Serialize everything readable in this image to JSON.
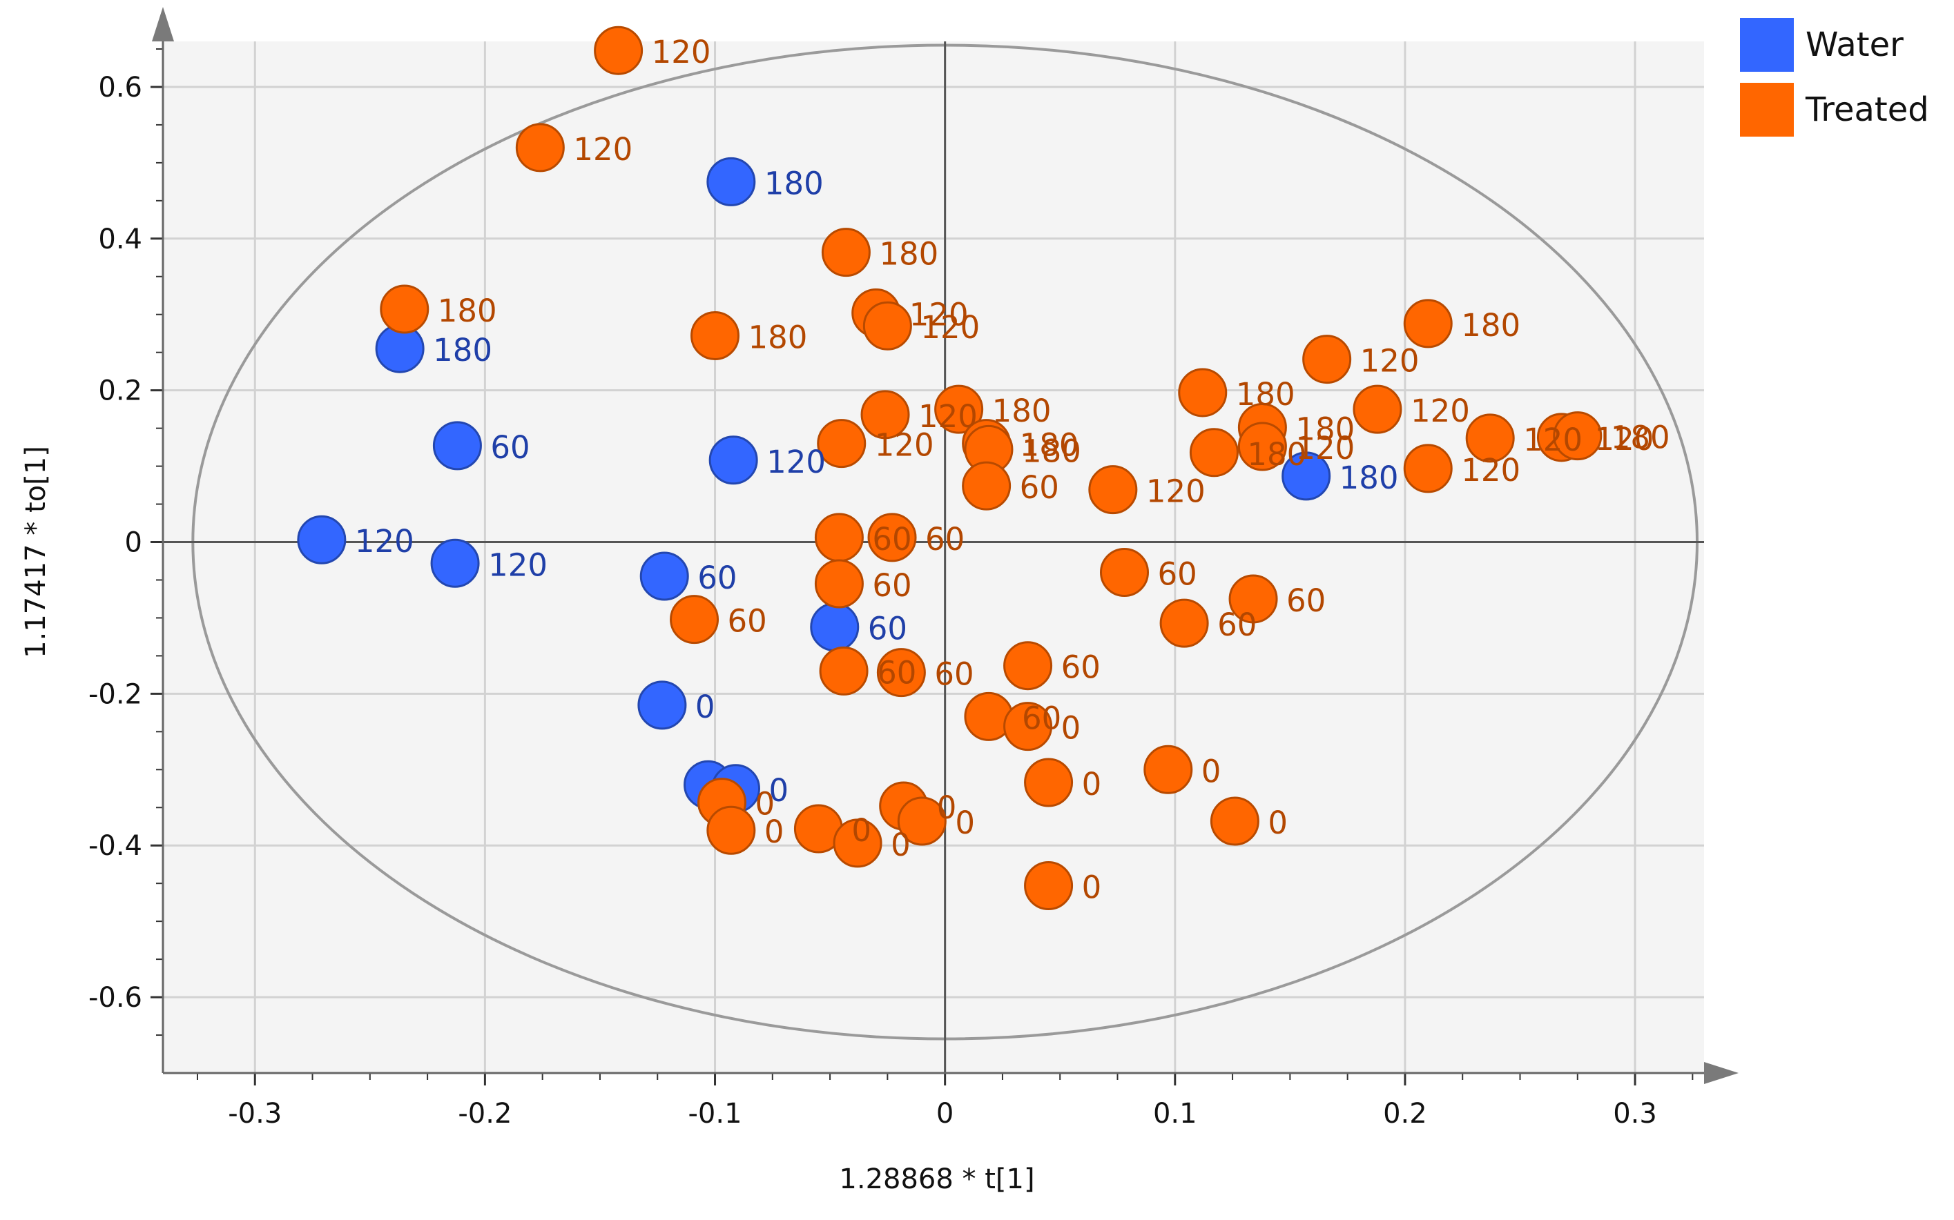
{
  "chart_data": {
    "type": "scatter",
    "xlabel": "1.28868 * t[1]",
    "ylabel": "1.17417 * to[1]",
    "xlim": [
      -0.34,
      0.33
    ],
    "ylim": [
      -0.7,
      0.66
    ],
    "xticks": [
      -0.3,
      -0.2,
      -0.1,
      0,
      0.1,
      0.2,
      0.3
    ],
    "xtick_labels": [
      "-0.3",
      "-0.2",
      "-0.1",
      "0",
      "0.1",
      "0.2",
      "0.3"
    ],
    "yticks": [
      -0.6,
      -0.4,
      -0.2,
      0,
      0.2,
      0.4,
      0.6
    ],
    "ytick_labels": [
      "-0.6",
      "-0.4",
      "-0.2",
      "0",
      "0.2",
      "0.4",
      "0.6"
    ],
    "grid": true,
    "confidence_ellipse": {
      "center": [
        0,
        0
      ],
      "semi_axes": [
        0.327,
        0.655
      ]
    },
    "legend": {
      "position": "top-right",
      "entries": [
        {
          "name": "Water",
          "color": "#3366FF"
        },
        {
          "name": "Treated",
          "color": "#FF6600"
        }
      ]
    },
    "series": [
      {
        "name": "Water",
        "color": "#3366FF",
        "label_color": "#1F3FA8",
        "points": [
          {
            "x": -0.093,
            "y": 0.475,
            "label": "180"
          },
          {
            "x": -0.237,
            "y": 0.255,
            "label": "180"
          },
          {
            "x": -0.212,
            "y": 0.127,
            "label": "60"
          },
          {
            "x": -0.092,
            "y": 0.108,
            "label": "120"
          },
          {
            "x": -0.271,
            "y": 0.003,
            "label": "120"
          },
          {
            "x": -0.213,
            "y": -0.028,
            "label": "120"
          },
          {
            "x": -0.122,
            "y": -0.045,
            "label": "60"
          },
          {
            "x": -0.048,
            "y": -0.112,
            "label": "60"
          },
          {
            "x": -0.123,
            "y": -0.215,
            "label": "0"
          },
          {
            "x": -0.103,
            "y": -0.32,
            "label": ""
          },
          {
            "x": -0.091,
            "y": -0.325,
            "label": "0"
          },
          {
            "x": 0.157,
            "y": 0.087,
            "label": "180"
          }
        ]
      },
      {
        "name": "Treated",
        "color": "#FF6600",
        "label_color": "#B34700",
        "points": [
          {
            "x": -0.142,
            "y": 0.648,
            "label": "120"
          },
          {
            "x": -0.176,
            "y": 0.52,
            "label": "120"
          },
          {
            "x": -0.043,
            "y": 0.382,
            "label": "180"
          },
          {
            "x": -0.235,
            "y": 0.307,
            "label": "180"
          },
          {
            "x": -0.1,
            "y": 0.272,
            "label": "180"
          },
          {
            "x": -0.03,
            "y": 0.302,
            "label": "120"
          },
          {
            "x": -0.025,
            "y": 0.285,
            "label": "120"
          },
          {
            "x": -0.026,
            "y": 0.168,
            "label": "120"
          },
          {
            "x": 0.006,
            "y": 0.175,
            "label": "180"
          },
          {
            "x": -0.045,
            "y": 0.13,
            "label": "120"
          },
          {
            "x": 0.018,
            "y": 0.13,
            "label": "180"
          },
          {
            "x": 0.019,
            "y": 0.122,
            "label": "180"
          },
          {
            "x": 0.018,
            "y": 0.074,
            "label": "60"
          },
          {
            "x": 0.073,
            "y": 0.069,
            "label": "120"
          },
          {
            "x": 0.112,
            "y": 0.197,
            "label": "180"
          },
          {
            "x": 0.166,
            "y": 0.241,
            "label": "120"
          },
          {
            "x": 0.21,
            "y": 0.288,
            "label": "180"
          },
          {
            "x": 0.188,
            "y": 0.175,
            "label": "120"
          },
          {
            "x": 0.138,
            "y": 0.151,
            "label": "180"
          },
          {
            "x": 0.138,
            "y": 0.126,
            "label": "120"
          },
          {
            "x": 0.117,
            "y": 0.118,
            "label": "180"
          },
          {
            "x": 0.237,
            "y": 0.137,
            "label": "120"
          },
          {
            "x": 0.21,
            "y": 0.097,
            "label": "120"
          },
          {
            "x": 0.268,
            "y": 0.138,
            "label": "120"
          },
          {
            "x": 0.275,
            "y": 0.14,
            "label": "180"
          },
          {
            "x": -0.046,
            "y": 0.006,
            "label": "60"
          },
          {
            "x": -0.023,
            "y": 0.006,
            "label": "60"
          },
          {
            "x": -0.046,
            "y": -0.055,
            "label": "60"
          },
          {
            "x": -0.109,
            "y": -0.102,
            "label": "60"
          },
          {
            "x": -0.044,
            "y": -0.17,
            "label": "60"
          },
          {
            "x": -0.019,
            "y": -0.172,
            "label": "60"
          },
          {
            "x": 0.078,
            "y": -0.04,
            "label": "60"
          },
          {
            "x": 0.134,
            "y": -0.075,
            "label": "60"
          },
          {
            "x": 0.104,
            "y": -0.107,
            "label": "60"
          },
          {
            "x": 0.036,
            "y": -0.163,
            "label": "60"
          },
          {
            "x": 0.019,
            "y": -0.23,
            "label": "60"
          },
          {
            "x": 0.036,
            "y": -0.243,
            "label": "0"
          },
          {
            "x": 0.045,
            "y": -0.317,
            "label": "0"
          },
          {
            "x": 0.097,
            "y": -0.3,
            "label": "0"
          },
          {
            "x": 0.126,
            "y": -0.368,
            "label": "0"
          },
          {
            "x": -0.097,
            "y": -0.343,
            "label": "0"
          },
          {
            "x": -0.093,
            "y": -0.38,
            "label": "0"
          },
          {
            "x": -0.055,
            "y": -0.378,
            "label": "0"
          },
          {
            "x": -0.038,
            "y": -0.397,
            "label": "0"
          },
          {
            "x": -0.018,
            "y": -0.348,
            "label": "0"
          },
          {
            "x": -0.01,
            "y": -0.368,
            "label": "0"
          },
          {
            "x": 0.045,
            "y": -0.453,
            "label": "0"
          }
        ]
      }
    ]
  }
}
